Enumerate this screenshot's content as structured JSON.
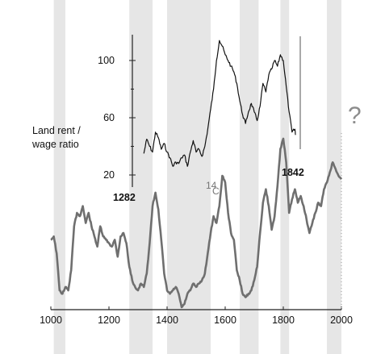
{
  "chart_data": {
    "type": "line",
    "title": "",
    "x_range": [
      1000,
      2000
    ],
    "x_ticks": [
      1000,
      1200,
      1400,
      1600,
      1800,
      2000
    ],
    "x_tick_labels": [
      "1000",
      "1200",
      "1400",
      "1600",
      "1800",
      "2000"
    ],
    "shaded_periods": [
      [
        1010,
        1050
      ],
      [
        1270,
        1350
      ],
      [
        1400,
        1550
      ],
      [
        1650,
        1715
      ],
      [
        1790,
        1820
      ],
      [
        1950,
        2000
      ]
    ],
    "series": [
      {
        "key": "land_rent",
        "y_range": [
          20,
          120
        ],
        "y_ticks": [
          20,
          60,
          100
        ],
        "y_tick_labels": [
          "20",
          "60",
          "100"
        ],
        "x": [
          1320,
          1330,
          1340,
          1350,
          1360,
          1370,
          1380,
          1390,
          1400,
          1410,
          1420,
          1430,
          1440,
          1450,
          1460,
          1470,
          1480,
          1490,
          1500,
          1510,
          1520,
          1530,
          1540,
          1550,
          1560,
          1570,
          1580,
          1590,
          1600,
          1610,
          1620,
          1630,
          1640,
          1650,
          1660,
          1670,
          1680,
          1690,
          1700,
          1710,
          1720,
          1730,
          1740,
          1750,
          1760,
          1770,
          1780,
          1790,
          1800,
          1810,
          1820,
          1830,
          1840,
          1842
        ],
        "y": [
          35,
          45,
          40,
          36,
          50,
          46,
          38,
          42,
          36,
          32,
          26,
          29,
          28,
          32,
          34,
          26,
          36,
          44,
          36,
          38,
          33,
          40,
          52,
          66,
          80,
          100,
          114,
          110,
          104,
          100,
          96,
          92,
          84,
          72,
          62,
          56,
          64,
          70,
          64,
          58,
          68,
          84,
          78,
          90,
          94,
          100,
          96,
          104,
          100,
          82,
          64,
          50,
          52,
          48
        ]
      },
      {
        "key": "c14",
        "x": [
          1000,
          1010,
          1020,
          1030,
          1040,
          1050,
          1060,
          1070,
          1080,
          1090,
          1100,
          1110,
          1120,
          1130,
          1140,
          1150,
          1160,
          1170,
          1180,
          1190,
          1200,
          1210,
          1220,
          1230,
          1240,
          1250,
          1260,
          1270,
          1280,
          1290,
          1300,
          1310,
          1320,
          1330,
          1340,
          1350,
          1360,
          1370,
          1380,
          1390,
          1400,
          1410,
          1420,
          1430,
          1440,
          1450,
          1460,
          1470,
          1480,
          1490,
          1500,
          1510,
          1520,
          1530,
          1540,
          1550,
          1560,
          1570,
          1580,
          1590,
          1600,
          1610,
          1620,
          1630,
          1640,
          1650,
          1660,
          1670,
          1680,
          1690,
          1700,
          1710,
          1720,
          1730,
          1740,
          1750,
          1760,
          1770,
          1780,
          1790,
          1800,
          1810,
          1820,
          1830,
          1840,
          1850,
          1860,
          1870,
          1880,
          1890,
          1900,
          1910,
          1920,
          1930,
          1940,
          1950,
          1960,
          1970,
          1980,
          1990,
          2000
        ],
        "y": [
          0.4,
          0.42,
          0.32,
          0.1,
          0.08,
          0.12,
          0.1,
          0.22,
          0.48,
          0.56,
          0.54,
          0.6,
          0.5,
          0.56,
          0.48,
          0.42,
          0.36,
          0.48,
          0.42,
          0.4,
          0.38,
          0.36,
          0.4,
          0.3,
          0.42,
          0.44,
          0.38,
          0.24,
          0.16,
          0.12,
          0.1,
          0.14,
          0.12,
          0.2,
          0.38,
          0.6,
          0.68,
          0.58,
          0.4,
          0.2,
          0.1,
          0.08,
          0.1,
          0.12,
          0.08,
          0.0,
          0.02,
          0.08,
          0.1,
          0.14,
          0.12,
          0.14,
          0.16,
          0.2,
          0.32,
          0.44,
          0.54,
          0.5,
          0.6,
          0.78,
          0.74,
          0.56,
          0.44,
          0.4,
          0.22,
          0.16,
          0.08,
          0.06,
          0.08,
          0.1,
          0.16,
          0.24,
          0.44,
          0.62,
          0.7,
          0.6,
          0.46,
          0.54,
          0.72,
          0.94,
          1.0,
          0.86,
          0.56,
          0.64,
          0.7,
          0.62,
          0.66,
          0.6,
          0.52,
          0.44,
          0.5,
          0.56,
          0.62,
          0.6,
          0.7,
          0.74,
          0.8,
          0.86,
          0.82,
          0.78,
          0.76
        ]
      }
    ],
    "annotations": {
      "ylabel_line1": "Land rent /",
      "ylabel_line2": "wage ratio",
      "label_start": "1282",
      "label_end": "1842",
      "c14_label": "14",
      "c14_label_C": "C",
      "question_mark": "?"
    }
  }
}
